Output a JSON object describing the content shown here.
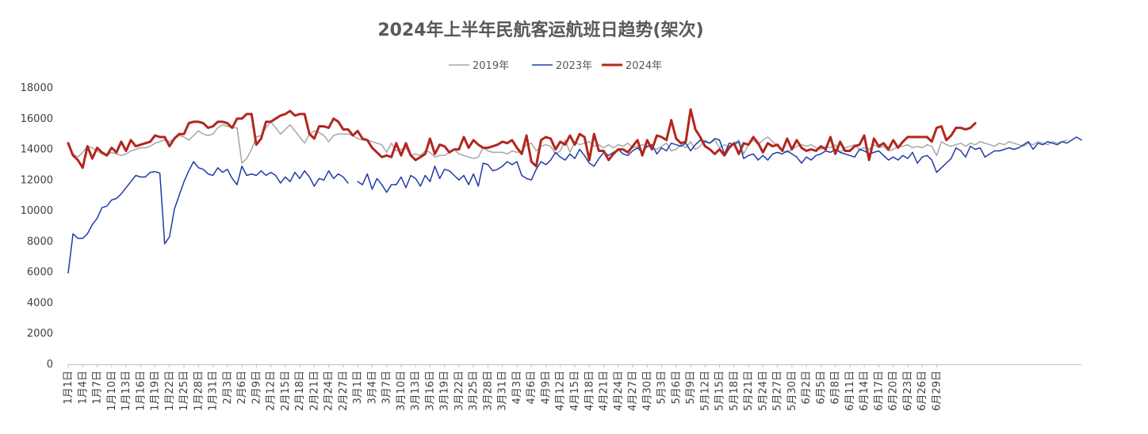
{
  "chart_data": {
    "type": "line",
    "title": "2024年上半年民航客运航班日趋势(架次)",
    "xlabel": "",
    "ylabel": "",
    "ylim": [
      0,
      18000
    ],
    "yticks": [
      0,
      2000,
      4000,
      6000,
      8000,
      10000,
      12000,
      14000,
      16000,
      18000
    ],
    "x_start": "2024-01-01",
    "x_end": "2024-06-30",
    "x_tick_every_days": 3,
    "grid": false,
    "legend_position": "top-center",
    "gap_after_label": "2月28日",
    "series": [
      {
        "name": "2019年",
        "color": "#a6a6a6",
        "stroke_width": 1.5,
        "values": [
          14300,
          13700,
          13500,
          13800,
          14200,
          14100,
          13900,
          13700,
          13600,
          13800,
          13700,
          13600,
          13700,
          13900,
          14000,
          14100,
          14100,
          14200,
          14400,
          14500,
          14600,
          14500,
          14700,
          14900,
          14800,
          14600,
          14900,
          15200,
          15000,
          14900,
          15000,
          15400,
          15600,
          15500,
          15400,
          15400,
          13100,
          13400,
          14000,
          14800,
          14900,
          15400,
          15800,
          15400,
          15000,
          15300,
          15600,
          15200,
          14800,
          14400,
          15000,
          15200,
          15100,
          14900,
          14500,
          14900,
          15000,
          15000,
          15000,
          14900,
          14700,
          14600,
          14600,
          14500,
          14400,
          14300,
          13800,
          14400,
          13900,
          14000,
          14100,
          13600,
          13700,
          13600,
          13900,
          13800,
          13500,
          13600,
          13600,
          13800,
          14000,
          13700,
          13600,
          13500,
          13400,
          13500,
          14100,
          13900,
          13800,
          13800,
          13800,
          13700,
          13900,
          13800,
          13900,
          14300,
          14400,
          13900,
          14200,
          14300,
          14200,
          13700,
          13900,
          14600,
          13800,
          14500,
          14300,
          14400,
          14500,
          14200,
          14300,
          14100,
          14300,
          14100,
          14300,
          14200,
          14400,
          14100,
          14200,
          14300,
          14200,
          14100,
          14000,
          14200,
          14400,
          13900,
          14000,
          14300,
          14100,
          14500,
          14000,
          14200,
          14600,
          14400,
          14600,
          14100,
          14300,
          14200,
          14400,
          14600,
          13700,
          14300,
          14600,
          14300,
          14600,
          14800,
          14500,
          14200,
          13900,
          13800,
          14000,
          14200,
          14300,
          14200,
          14300,
          14100,
          14000,
          14200,
          14100,
          14300,
          13800,
          14100,
          14200,
          14300,
          14000,
          14100,
          14000,
          14300,
          14100,
          14200,
          13900,
          14000,
          14200,
          14200,
          14300,
          14100,
          14200,
          14100,
          14300,
          14200,
          13600,
          14500,
          14300,
          14200,
          14300,
          14400,
          14200,
          14400,
          14300,
          14500,
          14400,
          14300,
          14200,
          14400,
          14300,
          14500,
          14400,
          14300,
          14200,
          14400,
          14300,
          14500,
          14400,
          14300,
          14500,
          14400,
          14500,
          14600
        ]
      },
      {
        "name": "2023年",
        "color": "#1f3ba8",
        "stroke_width": 1.5,
        "values": [
          5950,
          8500,
          8200,
          8200,
          8500,
          9100,
          9500,
          10200,
          10300,
          10700,
          10800,
          11100,
          11500,
          11900,
          12300,
          12200,
          12200,
          12500,
          12550,
          12450,
          7850,
          8300,
          10100,
          11000,
          11900,
          12600,
          13200,
          12800,
          12700,
          12400,
          12300,
          12800,
          12500,
          12700,
          12100,
          11700,
          12900,
          12300,
          12400,
          12300,
          12600,
          12300,
          12500,
          12300,
          11800,
          12200,
          11900,
          12500,
          12100,
          12600,
          12200,
          11600,
          12100,
          12000,
          12600,
          12100,
          12400,
          12200,
          11800,
          null,
          11900,
          11700,
          12400,
          11400,
          12100,
          11700,
          11200,
          11700,
          11700,
          12200,
          11500,
          12300,
          12100,
          11600,
          12300,
          11900,
          12900,
          12100,
          12700,
          12600,
          12300,
          12000,
          12300,
          11700,
          12400,
          11600,
          13100,
          13000,
          12600,
          12700,
          12900,
          13200,
          13000,
          13200,
          12300,
          12100,
          12000,
          12700,
          13200,
          13000,
          13300,
          13800,
          13500,
          13300,
          13700,
          13400,
          14000,
          13600,
          13100,
          12900,
          13400,
          13800,
          13600,
          13800,
          14000,
          13700,
          13600,
          13900,
          14100,
          13800,
          14200,
          14300,
          13700,
          14100,
          13900,
          14400,
          14300,
          14200,
          14400,
          13900,
          14300,
          14600,
          14500,
          14400,
          14700,
          14600,
          13700,
          14400,
          14300,
          14500,
          13400,
          13600,
          13700,
          13300,
          13600,
          13300,
          13700,
          13800,
          13700,
          13900,
          13700,
          13500,
          13100,
          13500,
          13300,
          13600,
          13700,
          13900,
          13800,
          14000,
          13800,
          13700,
          13600,
          13500,
          14000,
          13900,
          13700,
          13800,
          13900,
          13600,
          13300,
          13500,
          13300,
          13600,
          13400,
          13800,
          13100,
          13500,
          13600,
          13300,
          12500,
          12800,
          13100,
          13400,
          14100,
          13900,
          13500,
          14200,
          14000,
          14100,
          13500,
          13700,
          13900,
          13900,
          14000,
          14100,
          14000,
          14100,
          14300,
          14500,
          14000,
          14400,
          14300,
          14500,
          14400,
          14300,
          14500,
          14400,
          14600,
          14800,
          14600
        ]
      },
      {
        "name": "2024年",
        "color": "#b3261e",
        "stroke_width": 3,
        "values": [
          14400,
          13600,
          13300,
          12800,
          14200,
          13400,
          14100,
          13800,
          13600,
          14100,
          13800,
          14500,
          13900,
          14600,
          14200,
          14300,
          14400,
          14500,
          14900,
          14800,
          14800,
          14200,
          14700,
          15000,
          15000,
          15700,
          15800,
          15800,
          15700,
          15400,
          15500,
          15800,
          15800,
          15700,
          15400,
          16000,
          16000,
          16300,
          16300,
          14300,
          14700,
          15800,
          15800,
          16000,
          16200,
          16300,
          16500,
          16200,
          16300,
          16300,
          15000,
          14700,
          15500,
          15500,
          15400,
          16000,
          15800,
          15300,
          15300,
          14900,
          15200,
          14700,
          14600,
          14100,
          13800,
          13500,
          13600,
          13500,
          14400,
          13600,
          14400,
          13600,
          13300,
          13500,
          13700,
          14700,
          13700,
          14300,
          14200,
          13800,
          14000,
          14000,
          14800,
          14100,
          14600,
          14300,
          14100,
          14100,
          14200,
          14300,
          14500,
          14400,
          14600,
          14100,
          13700,
          14900,
          13200,
          12900,
          14600,
          14800,
          14700,
          14000,
          14500,
          14300,
          14900,
          14300,
          15000,
          14800,
          13300,
          15000,
          13900,
          13900,
          13300,
          13700,
          14000,
          14000,
          13800,
          14200,
          14600,
          13600,
          14600,
          14000,
          14900,
          14800,
          14600,
          15900,
          14700,
          14400,
          14500,
          16600,
          15300,
          14800,
          14200,
          14000,
          13700,
          14000,
          13600,
          14100,
          14400,
          13700,
          14400,
          14300,
          14800,
          14400,
          13800,
          14400,
          14200,
          14300,
          13900,
          14700,
          14000,
          14600,
          14100,
          13900,
          14000,
          13900,
          14200,
          14000,
          14800,
          13700,
          14500,
          13900,
          13900,
          14200,
          14300,
          14900,
          13300,
          14700,
          14200,
          14400,
          14000,
          14600,
          14100,
          14500,
          14800,
          14800,
          14800,
          14800,
          14800,
          14500,
          15400,
          15500,
          14600,
          14900,
          15400,
          15400,
          15300,
          15400,
          15700
        ]
      }
    ],
    "x_tick_labels": [
      "1月1日",
      "1月4日",
      "1月7日",
      "1月10日",
      "1月13日",
      "1月16日",
      "1月19日",
      "1月22日",
      "1月25日",
      "1月28日",
      "1月31日",
      "2月3日",
      "2月6日",
      "2月9日",
      "2月12日",
      "2月15日",
      "2月18日",
      "2月21日",
      "2月24日",
      "2月27日",
      "3月1日",
      "3月4日",
      "3月7日",
      "3月10日",
      "3月13日",
      "3月16日",
      "3月19日",
      "3月22日",
      "3月25日",
      "3月28日",
      "3月31日",
      "4月3日",
      "4月6日",
      "4月9日",
      "4月12日",
      "4月15日",
      "4月18日",
      "4月21日",
      "4月24日",
      "4月27日",
      "4月30日",
      "5月3日",
      "5月6日",
      "5月9日",
      "5月12日",
      "5月15日",
      "5月18日",
      "5月21日",
      "5月24日",
      "5月27日",
      "5月30日",
      "6月2日",
      "6月5日",
      "6月8日",
      "6月11日",
      "6月14日",
      "6月17日",
      "6月20日",
      "6月23日",
      "6月26日",
      "6月29日"
    ]
  }
}
